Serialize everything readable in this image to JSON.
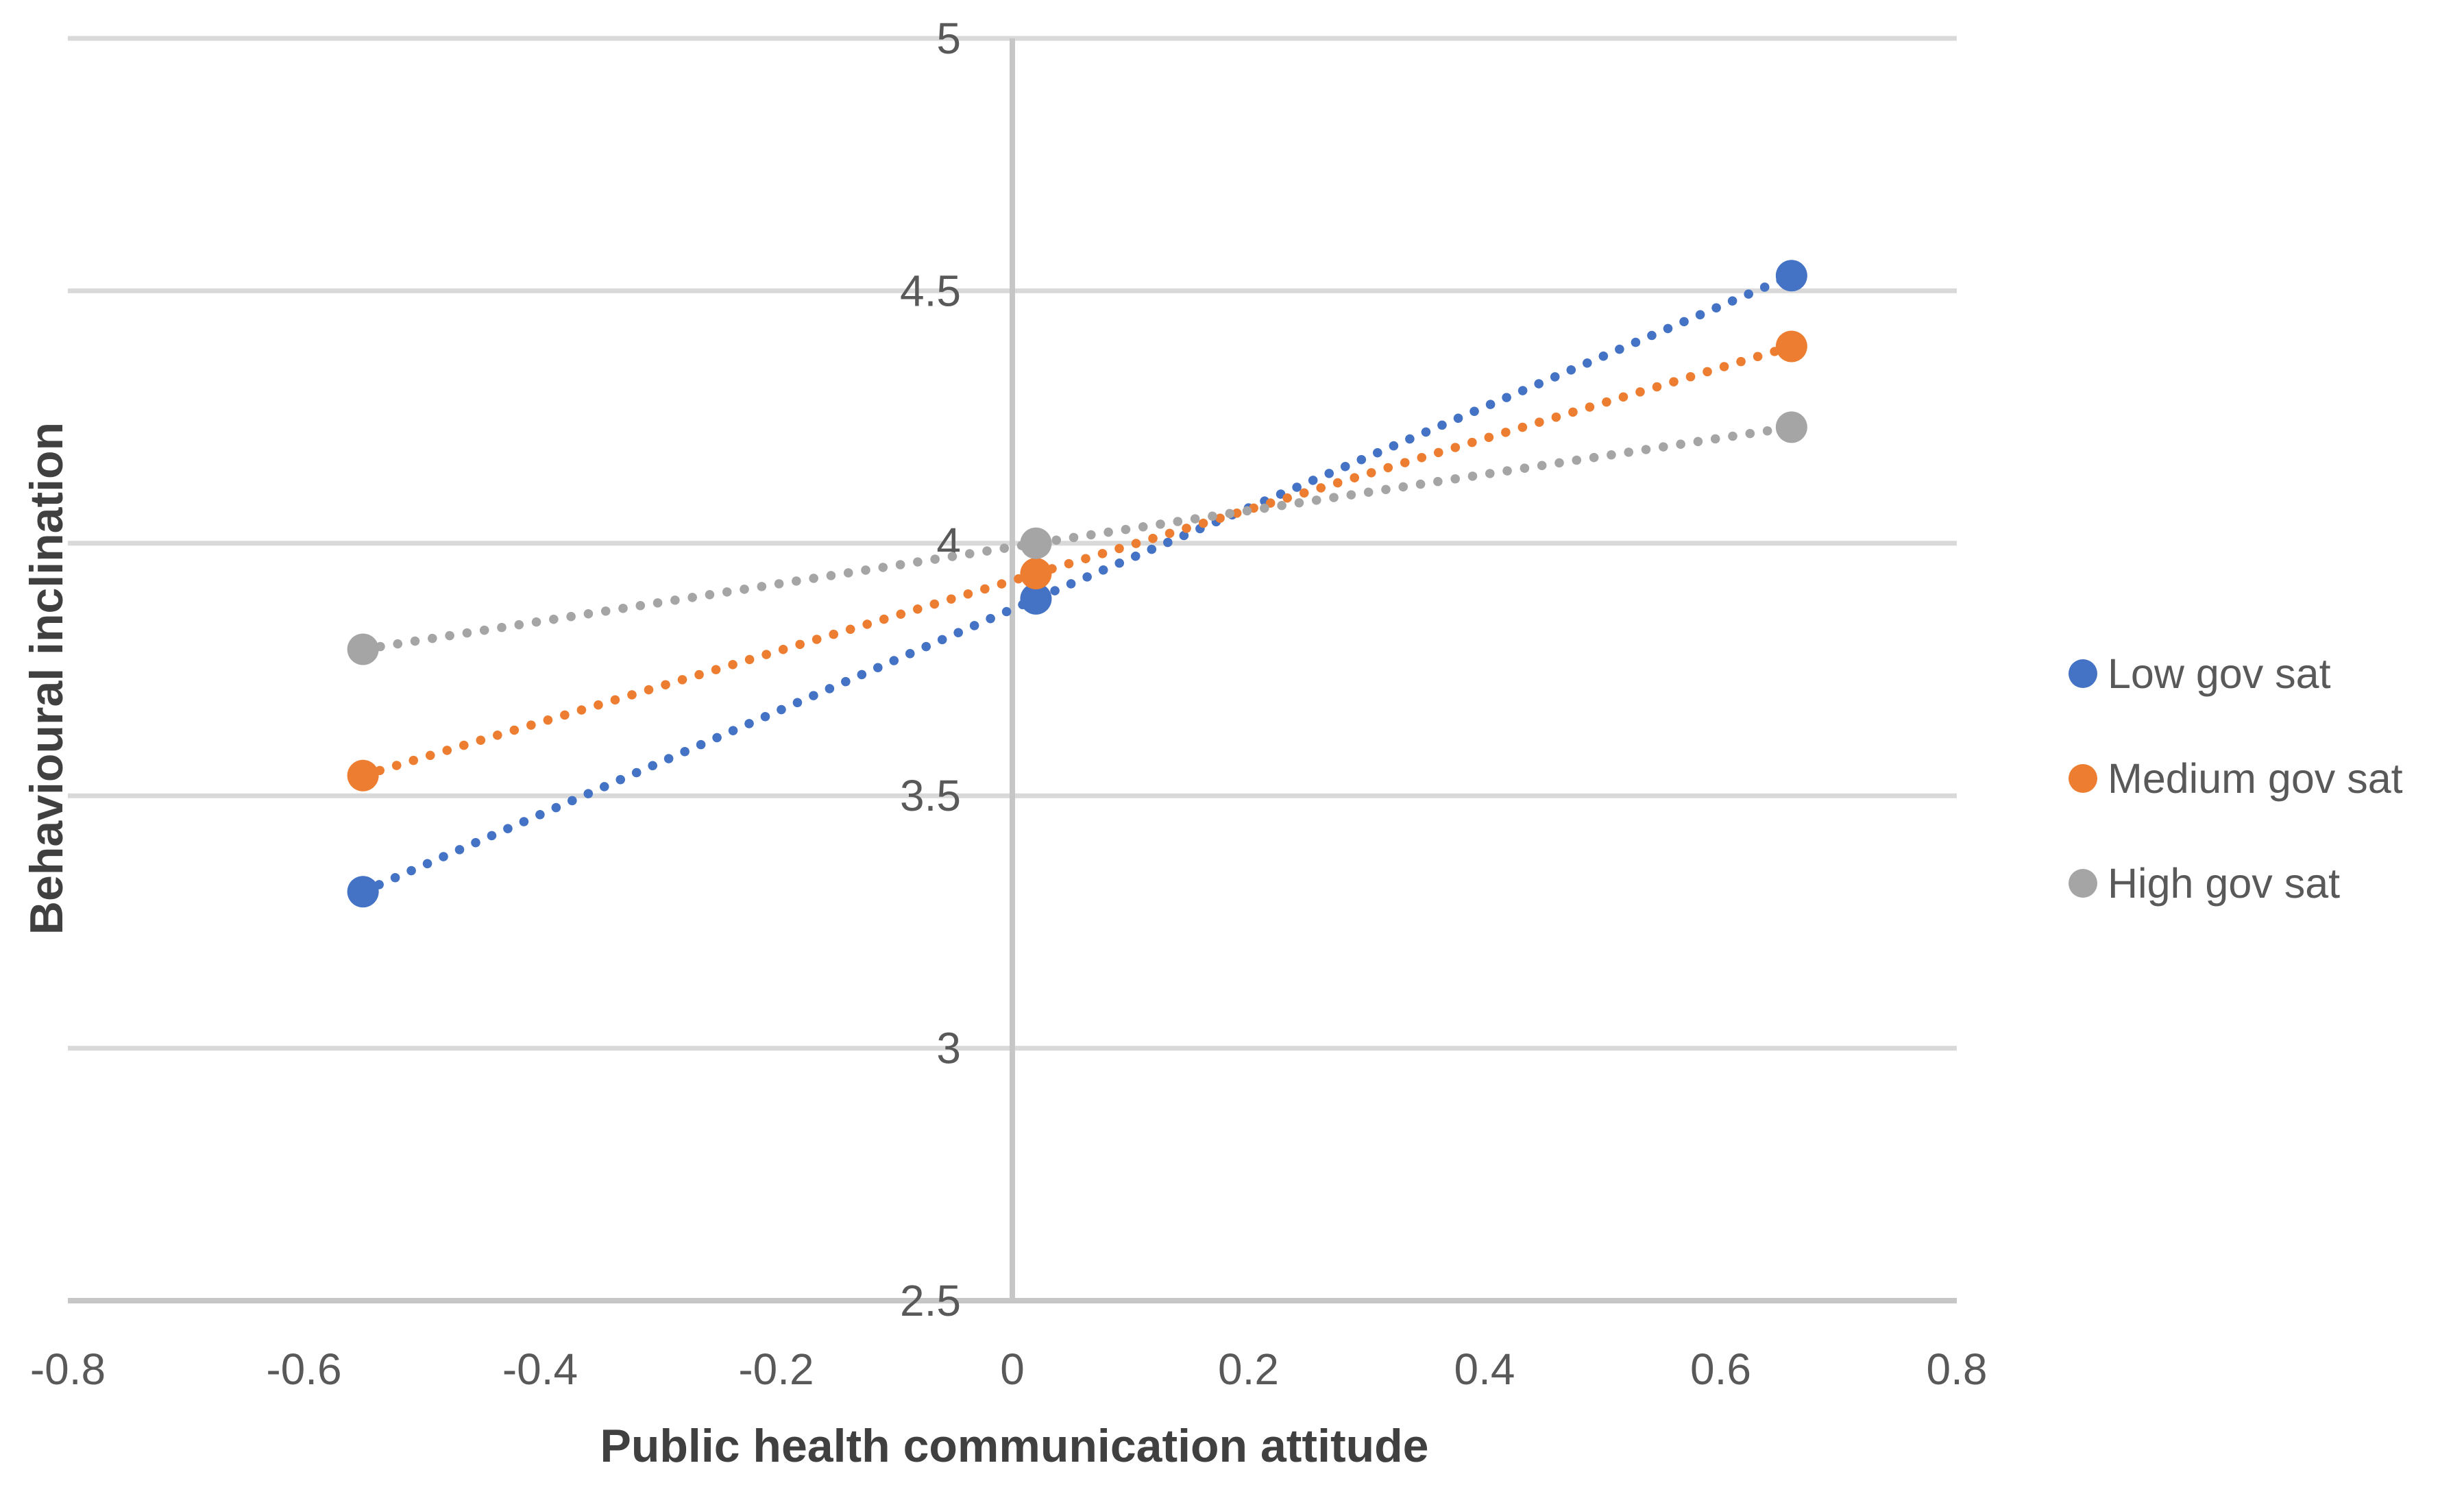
{
  "chart_data": {
    "type": "scatter",
    "title": "",
    "xlabel": "Public health communication attitude",
    "ylabel": "Behavioural inclination",
    "grid": "horizontal",
    "line_style": "dotted",
    "legend_position": "right",
    "x_axis": {
      "min": -0.8,
      "max": 0.8,
      "tick_step": 0.2,
      "tick_values": [
        -0.8,
        -0.6,
        -0.4,
        -0.2,
        0,
        0.2,
        0.4,
        0.6,
        0.8
      ],
      "tick_labels": [
        "-0.8",
        "-0.6",
        "-0.4",
        "-0.2",
        "0",
        "0.2",
        "0.4",
        "0.6",
        "0.8"
      ]
    },
    "y_axis": {
      "min": 2.5,
      "max": 5,
      "tick_step": 0.5,
      "tick_values": [
        2.5,
        3,
        3.5,
        4,
        4.5,
        5
      ],
      "tick_labels": [
        "2.5",
        "3",
        "3.5",
        "4",
        "4.5",
        "5"
      ]
    },
    "x": [
      -0.55,
      0.02,
      0.66
    ],
    "series": [
      {
        "name": "Low gov sat",
        "color": "#4472C4",
        "values": [
          3.31,
          3.89,
          4.53
        ]
      },
      {
        "name": "Medium gov sat",
        "color": "#ED7D31",
        "values": [
          3.54,
          3.94,
          4.39
        ]
      },
      {
        "name": "High gov sat",
        "color": "#A5A5A5",
        "values": [
          3.79,
          4.0,
          4.23
        ]
      }
    ]
  },
  "legend": {
    "items": [
      {
        "label": "Low gov sat",
        "color": "#4472C4"
      },
      {
        "label": "Medium gov sat",
        "color": "#ED7D31"
      },
      {
        "label": "High gov sat",
        "color": "#A5A5A5"
      }
    ]
  },
  "colors": {
    "gridline": "#D9D9D9",
    "axis_line": "#C6C6C6",
    "tick_label": "#595959",
    "axis_title": "#404040",
    "legend_text": "#595959",
    "background": "#FFFFFF"
  }
}
